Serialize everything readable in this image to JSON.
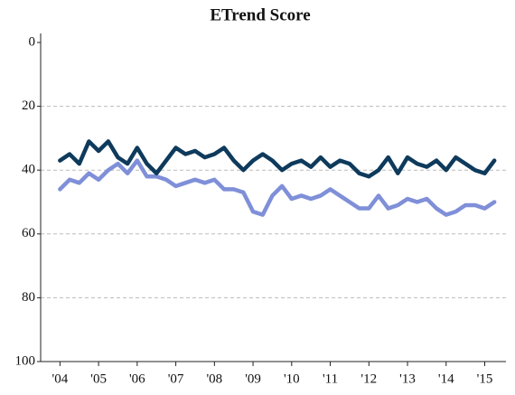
{
  "chart_data": {
    "type": "line",
    "title": "ETrend Score",
    "x": [
      2004,
      2004.25,
      2004.5,
      2004.75,
      2005,
      2005.25,
      2005.5,
      2005.75,
      2006,
      2006.25,
      2006.5,
      2006.75,
      2007,
      2007.25,
      2007.5,
      2007.75,
      2008,
      2008.25,
      2008.5,
      2008.75,
      2009,
      2009.25,
      2009.5,
      2009.75,
      2010,
      2010.25,
      2010.5,
      2010.75,
      2011,
      2011.25,
      2011.5,
      2011.75,
      2012,
      2012.25,
      2012.5,
      2012.75,
      2013,
      2013.25,
      2013.5,
      2013.75,
      2014,
      2014.25,
      2014.5,
      2014.75,
      2015,
      2015.25
    ],
    "series": [
      {
        "color": "#0e3a5c",
        "values": [
          37,
          35,
          38,
          31,
          34,
          31,
          36,
          38,
          33,
          38,
          41,
          37,
          33,
          35,
          34,
          36,
          35,
          33,
          37,
          40,
          37,
          35,
          37,
          40,
          38,
          37,
          39,
          36,
          39,
          37,
          38,
          41,
          42,
          40,
          36,
          41,
          36,
          38,
          39,
          37,
          40,
          36,
          38,
          40,
          41,
          37
        ]
      },
      {
        "color": "#7f8fd8",
        "values": [
          46,
          43,
          44,
          41,
          43,
          40,
          38,
          41,
          37,
          42,
          42,
          43,
          45,
          44,
          43,
          44,
          43,
          46,
          46,
          47,
          53,
          54,
          48,
          45,
          49,
          48,
          49,
          48,
          46,
          48,
          50,
          52,
          52,
          48,
          52,
          51,
          49,
          50,
          49,
          52,
          54,
          53,
          51,
          51,
          52,
          50
        ]
      }
    ],
    "xlim": [
      2003.5,
      2015.55
    ],
    "xticks": [
      {
        "value": 2004,
        "label": "'04"
      },
      {
        "value": 2005,
        "label": "'05"
      },
      {
        "value": 2006,
        "label": "'06"
      },
      {
        "value": 2007,
        "label": "'07"
      },
      {
        "value": 2008,
        "label": "'08"
      },
      {
        "value": 2009,
        "label": "'09"
      },
      {
        "value": 2010,
        "label": "'10"
      },
      {
        "value": 2011,
        "label": "'11"
      },
      {
        "value": 2012,
        "label": "'12"
      },
      {
        "value": 2013,
        "label": "'13"
      },
      {
        "value": 2014,
        "label": "'14"
      },
      {
        "value": 2015,
        "label": "'15"
      }
    ],
    "ylim": [
      0,
      100
    ],
    "yticks": [
      0,
      20,
      40,
      60,
      80,
      100
    ],
    "y_inverted": true,
    "grid": true
  }
}
